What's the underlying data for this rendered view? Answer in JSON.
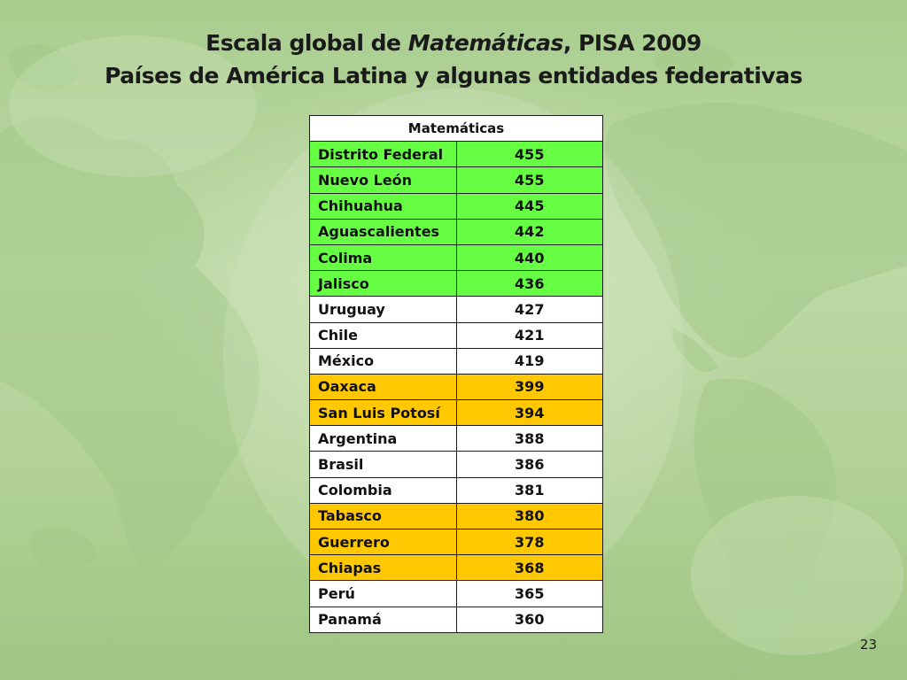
{
  "slide": {
    "title_part1": "Escala global de ",
    "title_italic": "Matemáticas",
    "title_part2": ", PISA 2009",
    "subtitle": "Países de América Latina y algunas entidades federativas",
    "page_number": "23"
  },
  "table": {
    "header": "Matemáticas",
    "rows": [
      {
        "name": "Distrito Federal",
        "value": "455",
        "highlight": "green"
      },
      {
        "name": "Nuevo León",
        "value": "455",
        "highlight": "green"
      },
      {
        "name": "Chihuahua",
        "value": "445",
        "highlight": "green"
      },
      {
        "name": "Aguascalientes",
        "value": "442",
        "highlight": "green"
      },
      {
        "name": "Colima",
        "value": "440",
        "highlight": "green"
      },
      {
        "name": "Jalisco",
        "value": "436",
        "highlight": "green"
      },
      {
        "name": "Uruguay",
        "value": "427",
        "highlight": "none"
      },
      {
        "name": "Chile",
        "value": "421",
        "highlight": "none"
      },
      {
        "name": "México",
        "value": "419",
        "highlight": "none"
      },
      {
        "name": "Oaxaca",
        "value": "399",
        "highlight": "orange"
      },
      {
        "name": "San Luis Potosí",
        "value": "394",
        "highlight": "orange"
      },
      {
        "name": "Argentina",
        "value": "388",
        "highlight": "none"
      },
      {
        "name": "Brasil",
        "value": "386",
        "highlight": "none"
      },
      {
        "name": "Colombia",
        "value": "381",
        "highlight": "none"
      },
      {
        "name": "Tabasco",
        "value": "380",
        "highlight": "orange"
      },
      {
        "name": "Guerrero",
        "value": "378",
        "highlight": "orange"
      },
      {
        "name": "Chiapas",
        "value": "368",
        "highlight": "orange"
      },
      {
        "name": "Perú",
        "value": "365",
        "highlight": "none"
      },
      {
        "name": "Panamá",
        "value": "360",
        "highlight": "none"
      }
    ]
  },
  "colors": {
    "green_highlight": "#66ff44",
    "orange_highlight": "#ffc800",
    "background": "#b3d29a"
  }
}
